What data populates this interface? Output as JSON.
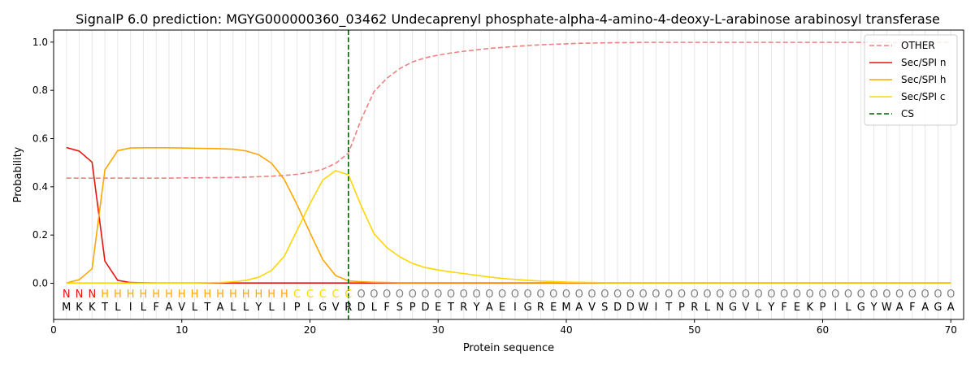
{
  "chart_data": {
    "type": "line",
    "title": "SignalP 6.0 prediction: MGYG000000360_03462 Undecaprenyl phosphate-alpha-4-amino-4-deoxy-L-arabinose arabinosyl transferase",
    "xlabel": "Protein sequence",
    "ylabel": "Probability",
    "xlim": [
      0,
      71
    ],
    "ylim": [
      -0.15,
      1.05
    ],
    "x_ticks": [
      0,
      10,
      20,
      30,
      40,
      50,
      60,
      70
    ],
    "y_ticks": [
      0.0,
      0.2,
      0.4,
      0.6,
      0.8,
      1.0
    ],
    "x_tick_labels": [
      "0",
      "10",
      "20",
      "30",
      "40",
      "50",
      "60",
      "70"
    ],
    "y_tick_labels": [
      "0.0",
      "0.2",
      "0.4",
      "0.6",
      "0.8",
      "1.0"
    ],
    "grid": "vertical lines at each residue position",
    "legend_position": "top-right",
    "cs_position": 23,
    "sequence": [
      "M",
      "K",
      "K",
      "T",
      "L",
      "I",
      "L",
      "F",
      "A",
      "V",
      "L",
      "T",
      "A",
      "L",
      "L",
      "Y",
      "L",
      "I",
      "P",
      "L",
      "G",
      "V",
      "R",
      "D",
      "L",
      "F",
      "S",
      "P",
      "D",
      "E",
      "T",
      "R",
      "Y",
      "A",
      "E",
      "I",
      "G",
      "R",
      "E",
      "M",
      "A",
      "V",
      "S",
      "D",
      "D",
      "W",
      "I",
      "T",
      "P",
      "R",
      "L",
      "N",
      "G",
      "V",
      "L",
      "Y",
      "F",
      "E",
      "K",
      "P",
      "I",
      "L",
      "G",
      "Y",
      "W",
      "A",
      "F",
      "A",
      "G",
      "A"
    ],
    "predicted_labels": [
      "N",
      "N",
      "N",
      "H",
      "H",
      "H",
      "H",
      "H",
      "H",
      "H",
      "H",
      "H",
      "H",
      "H",
      "H",
      "H",
      "H",
      "H",
      "C",
      "C",
      "C",
      "C",
      "C",
      "O",
      "O",
      "O",
      "O",
      "O",
      "O",
      "O",
      "O",
      "O",
      "O",
      "O",
      "O",
      "O",
      "O",
      "O",
      "O",
      "O",
      "O",
      "O",
      "O",
      "O",
      "O",
      "O",
      "O",
      "O",
      "O",
      "O",
      "O",
      "O",
      "O",
      "O",
      "O",
      "O",
      "O",
      "O",
      "O",
      "O",
      "O",
      "O",
      "O",
      "O",
      "O",
      "O",
      "O",
      "O",
      "O",
      "O"
    ],
    "label_colors": {
      "N": "#e8140e",
      "H": "#ffa500",
      "C": "#ffd700",
      "O": "#808080"
    },
    "series": [
      {
        "name": "OTHER",
        "color": "#ee8080",
        "dash": "dashed",
        "values": [
          0.436,
          0.436,
          0.436,
          0.436,
          0.436,
          0.436,
          0.436,
          0.436,
          0.436,
          0.437,
          0.437,
          0.438,
          0.438,
          0.439,
          0.44,
          0.442,
          0.444,
          0.447,
          0.452,
          0.46,
          0.473,
          0.497,
          0.54,
          0.68,
          0.795,
          0.85,
          0.89,
          0.918,
          0.935,
          0.946,
          0.955,
          0.962,
          0.968,
          0.974,
          0.978,
          0.982,
          0.986,
          0.989,
          0.991,
          0.993,
          0.995,
          0.996,
          0.997,
          0.998,
          0.998,
          0.999,
          0.999,
          0.999,
          0.999,
          0.999,
          0.999,
          0.999,
          0.999,
          0.999,
          0.999,
          0.999,
          0.999,
          0.999,
          0.999,
          0.999,
          0.999,
          0.999,
          0.999,
          0.999,
          0.999,
          0.999,
          0.999,
          0.999,
          0.999,
          0.999
        ]
      },
      {
        "name": "Sec/SPI n",
        "color": "#e8140e",
        "dash": "solid",
        "values": [
          0.563,
          0.548,
          0.502,
          0.092,
          0.012,
          0.003,
          0.002,
          0.001,
          0.001,
          0.001,
          0.001,
          0.001,
          0.001,
          0.001,
          0.001,
          0.001,
          0.001,
          0.001,
          0.001,
          0.001,
          0.001,
          0.001,
          0.001,
          0.001,
          0.001,
          0.001,
          0.001,
          0.001,
          0.001,
          0.001,
          0.001,
          0.001,
          0.001,
          0.001,
          0.001,
          0.001,
          0.001,
          0.001,
          0.001,
          0.001,
          0.001,
          0.001,
          0.001,
          0.001,
          0.001,
          0.001,
          0.001,
          0.001,
          0.001,
          0.001,
          0.001,
          0.001,
          0.001,
          0.001,
          0.001,
          0.001,
          0.001,
          0.001,
          0.001,
          0.001,
          0.001,
          0.001,
          0.001,
          0.001,
          0.001,
          0.001,
          0.001,
          0.001,
          0.001,
          0.001
        ]
      },
      {
        "name": "Sec/SPI h",
        "color": "#ffa500",
        "dash": "solid",
        "values": [
          0.001,
          0.015,
          0.06,
          0.47,
          0.55,
          0.561,
          0.562,
          0.562,
          0.562,
          0.561,
          0.56,
          0.559,
          0.558,
          0.556,
          0.549,
          0.533,
          0.498,
          0.43,
          0.325,
          0.21,
          0.098,
          0.032,
          0.01,
          0.006,
          0.004,
          0.003,
          0.002,
          0.002,
          0.002,
          0.002,
          0.002,
          0.002,
          0.002,
          0.002,
          0.002,
          0.002,
          0.002,
          0.002,
          0.002,
          0.002,
          0.002,
          0.002,
          0.002,
          0.002,
          0.002,
          0.002,
          0.002,
          0.002,
          0.002,
          0.002,
          0.002,
          0.002,
          0.002,
          0.002,
          0.002,
          0.002,
          0.002,
          0.002,
          0.002,
          0.002,
          0.002,
          0.002,
          0.002,
          0.002,
          0.002,
          0.002,
          0.002,
          0.002,
          0.002,
          0.002
        ]
      },
      {
        "name": "Sec/SPI c",
        "color": "#ffd700",
        "dash": "solid",
        "values": [
          0.001,
          0.001,
          0.001,
          0.001,
          0.001,
          0.001,
          0.001,
          0.001,
          0.001,
          0.001,
          0.001,
          0.002,
          0.003,
          0.006,
          0.012,
          0.025,
          0.053,
          0.112,
          0.22,
          0.33,
          0.428,
          0.467,
          0.45,
          0.32,
          0.205,
          0.148,
          0.11,
          0.082,
          0.065,
          0.055,
          0.047,
          0.04,
          0.033,
          0.026,
          0.02,
          0.016,
          0.012,
          0.009,
          0.007,
          0.005,
          0.004,
          0.003,
          0.002,
          0.002,
          0.002,
          0.002,
          0.002,
          0.002,
          0.002,
          0.002,
          0.002,
          0.002,
          0.002,
          0.002,
          0.002,
          0.002,
          0.002,
          0.002,
          0.002,
          0.002,
          0.002,
          0.002,
          0.002,
          0.002,
          0.002,
          0.002,
          0.002,
          0.002,
          0.002,
          0.002
        ]
      }
    ],
    "legend": [
      {
        "name": "OTHER",
        "color": "#ee8080",
        "dash": "dashed"
      },
      {
        "name": "Sec/SPI n",
        "color": "#e8140e",
        "dash": "solid"
      },
      {
        "name": "Sec/SPI h",
        "color": "#ffa500",
        "dash": "solid"
      },
      {
        "name": "Sec/SPI c",
        "color": "#ffd700",
        "dash": "solid"
      },
      {
        "name": "CS",
        "color": "#006400",
        "dash": "dashed"
      }
    ]
  }
}
